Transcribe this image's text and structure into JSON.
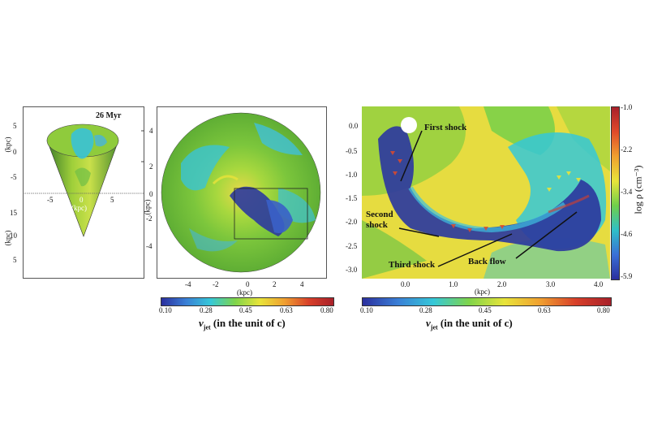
{
  "panel1": {
    "time_label": "26 Myr",
    "axis_label_top": "(kpc)",
    "axis_label_bottom": "(kpc)",
    "x_axis_label": "(kpc)",
    "y_ticks_top": [
      "5",
      "0",
      "-5"
    ],
    "x_ticks": [
      "-5",
      "0",
      "5"
    ],
    "y_ticks_bottom": [
      "15",
      "10",
      "5"
    ]
  },
  "panel2": {
    "x_axis_label": "(kpc)",
    "y_axis_label": "(kpc)",
    "x_ticks": [
      "-4",
      "-2",
      "0",
      "2",
      "4"
    ],
    "y_ticks": [
      "4",
      "2",
      "0",
      "-2",
      "-4"
    ]
  },
  "panel3": {
    "x_axis_label": "(kpc)",
    "x_ticks": [
      "0.0",
      "1.0",
      "2.0",
      "3.0",
      "4.0"
    ],
    "y_ticks": [
      "0.0",
      "-0.5",
      "-1.0",
      "-1.5",
      "-2.0",
      "-2.5",
      "-3.0"
    ],
    "annotations": {
      "first_shock": "First shock",
      "second_shock_1": "Second",
      "second_shock_2": "shock",
      "third_shock": "Third shock",
      "back_flow": "Back flow"
    }
  },
  "density_colorbar": {
    "label": "log ρ (cm⁻³)",
    "ticks": [
      "-1.0",
      "-2.2",
      "-3.4",
      "-4.6",
      "-5.9"
    ]
  },
  "velocity_colorbar_left": {
    "label_main": "v",
    "label_sub": "jet",
    "label_rest": " (in the unit of c)",
    "ticks": [
      "0.10",
      "0.28",
      "0.45",
      "0.63",
      "0.80"
    ]
  },
  "velocity_colorbar_right": {
    "label_main": "v",
    "label_sub": "jet",
    "label_rest": " (in the unit of c)",
    "ticks": [
      "0.10",
      "0.28",
      "0.45",
      "0.63",
      "0.80"
    ]
  },
  "colors": {
    "velocity_gradient": [
      "#2b2f9e",
      "#3a7fd6",
      "#35c8d8",
      "#7fd44a",
      "#e8e43a",
      "#f0a030",
      "#d8402a",
      "#a8202a"
    ],
    "density_gradient": [
      "#a8202a",
      "#e04a2a",
      "#f0a030",
      "#e8e43a",
      "#6fcf4a",
      "#2fbfc8",
      "#3a6fd6",
      "#2b2f9e"
    ]
  }
}
